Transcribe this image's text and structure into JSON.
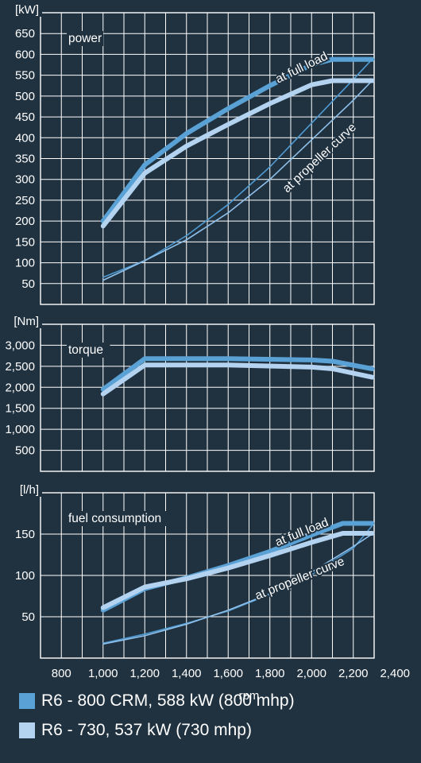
{
  "colors": {
    "background": "#203240",
    "grid": "#ffffff",
    "series_800": "#5aa2d6",
    "series_730": "#b3d3f0",
    "propeller_800": "#4f9ad2",
    "propeller_730": "#8fc0ea"
  },
  "x_axis": {
    "label": "rpm",
    "ticks": [
      "800",
      "1,000",
      "1,200",
      "1,400",
      "1,600",
      "1,800",
      "2,000",
      "2,200",
      "2,400"
    ]
  },
  "legend": [
    {
      "label": "R6 - 800 CRM, 588 kW (800 mhp)",
      "color": "#5aa2d6"
    },
    {
      "label": "R6 - 730, 537 kW (730 mhp)",
      "color": "#b3d3f0"
    }
  ],
  "chart_data": [
    {
      "type": "line",
      "unit": "[kW]",
      "panel_label": "power",
      "xlim": [
        700,
        2300
      ],
      "ylim": [
        0,
        700
      ],
      "y_ticks": [
        50,
        100,
        150,
        200,
        250,
        300,
        350,
        400,
        450,
        500,
        550,
        600,
        650
      ],
      "annotations": [
        {
          "text": "at full load",
          "x": 1960,
          "y": 560,
          "angle": -26
        },
        {
          "text": "at propeller curve",
          "x": 2050,
          "y": 345,
          "angle": -43
        }
      ],
      "series": [
        {
          "name": "R6 - 800 CRM, 588 kW (800 mhp)",
          "curve": "full load",
          "width": 6,
          "x": [
            1000,
            1200,
            1400,
            1600,
            1800,
            2000,
            2100,
            2290
          ],
          "y": [
            200,
            335,
            410,
            470,
            525,
            575,
            588,
            588
          ]
        },
        {
          "name": "R6 - 730, 537 kW (730 mhp)",
          "curve": "full load",
          "width": 6,
          "x": [
            1000,
            1200,
            1400,
            1600,
            1800,
            2000,
            2100,
            2290
          ],
          "y": [
            188,
            315,
            380,
            432,
            482,
            527,
            537,
            537
          ]
        },
        {
          "name": "R6 - 800 CRM, 588 kW (800 mhp)",
          "curve": "propeller",
          "width": 1.6,
          "x": [
            1000,
            1200,
            1400,
            1600,
            1800,
            2000,
            2200,
            2290
          ],
          "y": [
            65,
            105,
            165,
            240,
            330,
            435,
            540,
            588
          ]
        },
        {
          "name": "R6 - 730, 537 kW (730 mhp)",
          "curve": "propeller",
          "width": 1.6,
          "x": [
            1000,
            1200,
            1400,
            1600,
            1800,
            2000,
            2200,
            2290
          ],
          "y": [
            58,
            105,
            155,
            220,
            300,
            395,
            490,
            537
          ]
        }
      ]
    },
    {
      "type": "line",
      "unit": "[Nm]",
      "panel_label": "torque",
      "xlim": [
        700,
        2300
      ],
      "ylim": [
        0,
        3500
      ],
      "y_ticks": [
        500,
        1000,
        1500,
        2000,
        2500,
        3000
      ],
      "y_tick_labels": [
        "500",
        "1,000",
        "1,500",
        "2,000",
        "2,500",
        "3,000"
      ],
      "series": [
        {
          "name": "R6 - 800 CRM, 588 kW (800 mhp)",
          "curve": "full load",
          "width": 6,
          "x": [
            1000,
            1200,
            1600,
            2000,
            2100,
            2290
          ],
          "y": [
            1950,
            2680,
            2680,
            2650,
            2620,
            2440
          ]
        },
        {
          "name": "R6 - 730, 537 kW (730 mhp)",
          "curve": "full load",
          "width": 6,
          "x": [
            1000,
            1200,
            1600,
            2000,
            2100,
            2290
          ],
          "y": [
            1840,
            2530,
            2530,
            2480,
            2440,
            2240
          ]
        }
      ]
    },
    {
      "type": "line",
      "unit": "[l/h]",
      "panel_label": "fuel consumption",
      "xlim": [
        700,
        2300
      ],
      "ylim": [
        0,
        200
      ],
      "y_ticks": [
        50,
        100,
        150
      ],
      "annotations": [
        {
          "text": "at full load",
          "x": 1960,
          "y": 148,
          "angle": -22
        },
        {
          "text": "at propeller curve",
          "x": 1950,
          "y": 92,
          "angle": -22
        }
      ],
      "series": [
        {
          "name": "R6 - 800 CRM, 588 kW (800 mhp)",
          "curve": "full load",
          "width": 6,
          "x": [
            1000,
            1200,
            1400,
            1600,
            1800,
            2000,
            2150,
            2290
          ],
          "y": [
            58,
            84,
            97,
            112,
            129,
            149,
            163,
            163
          ]
        },
        {
          "name": "R6 - 730, 537 kW (730 mhp)",
          "curve": "full load",
          "width": 6,
          "x": [
            1000,
            1200,
            1400,
            1600,
            1800,
            2000,
            2150,
            2290
          ],
          "y": [
            61,
            86,
            96,
            109,
            124,
            140,
            151,
            151
          ]
        },
        {
          "name": "R6 - 800 CRM, 588 kW (800 mhp)",
          "curve": "propeller",
          "width": 1.6,
          "x": [
            1000,
            1200,
            1400,
            1600,
            1800,
            2000,
            2200,
            2290
          ],
          "y": [
            18,
            29,
            42,
            57,
            77,
            101,
            133,
            160
          ]
        },
        {
          "name": "R6 - 730, 537 kW (730 mhp)",
          "curve": "propeller",
          "width": 1.6,
          "x": [
            1000,
            1200,
            1400,
            1600,
            1800,
            2000,
            2200,
            2290
          ],
          "y": [
            17,
            27,
            41,
            58,
            78,
            104,
            135,
            150
          ]
        }
      ]
    }
  ]
}
